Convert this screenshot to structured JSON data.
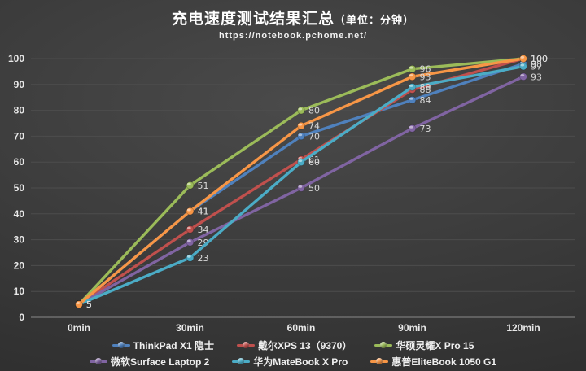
{
  "header": {
    "title_main": "充电速度测试结果汇总",
    "title_unit": "（单位：分钟）",
    "subtitle": "https://notebook.pchome.net/"
  },
  "chart_data": {
    "type": "line",
    "title": "充电速度测试结果汇总（单位：分钟）",
    "subtitle": "https://notebook.pchome.net/",
    "categories": [
      "0min",
      "30min",
      "60min",
      "90min",
      "120min"
    ],
    "series": [
      {
        "name": "ThinkPad X1 隐士",
        "color": "#4F81BD",
        "values": [
          5,
          41,
          70,
          84,
          98
        ]
      },
      {
        "name": "戴尔XPS 13（9370）",
        "color": "#C0504D",
        "values": [
          5,
          34,
          61,
          88,
          100
        ]
      },
      {
        "name": "华硕灵耀X Pro 15",
        "color": "#9BBB59",
        "values": [
          5,
          51,
          80,
          96,
          100
        ]
      },
      {
        "name": "微软Surface Laptop 2",
        "color": "#8064A2",
        "values": [
          5,
          29,
          50,
          73,
          93
        ]
      },
      {
        "name": "华为MateBook X Pro",
        "color": "#4BACC6",
        "values": [
          5,
          23,
          60,
          89,
          97
        ]
      },
      {
        "name": "惠普EliteBook 1050 G1",
        "color": "#F79646",
        "values": [
          5,
          41,
          74,
          93,
          100
        ]
      }
    ],
    "xlabel": "",
    "ylabel": "",
    "ylim": [
      0,
      100
    ],
    "ytick_step": 10,
    "grid": true,
    "data_labels": true,
    "legend_position": "bottom",
    "legend_rows": [
      [
        0,
        1,
        2
      ],
      [
        3,
        4,
        5
      ]
    ],
    "background": "#3c3c3c",
    "gridline_color": "#4d4d4d",
    "axis_line_color": "#8a8a8a",
    "label_color": "#d9d9d9"
  }
}
